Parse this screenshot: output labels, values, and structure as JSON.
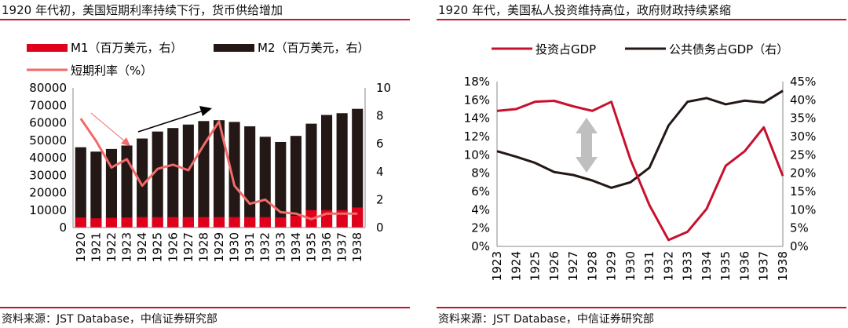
{
  "colors": {
    "accent": "#c8102e",
    "m1": "#e0001b",
    "m2": "#231815",
    "rate": "#f26a6a",
    "black": "#231815",
    "arrow_gray": "#bfbfbf"
  },
  "left": {
    "title": "1920 年代初，美国短期利率持续下行，货币供给增加",
    "source": "资料来源：JST Database，中信证券研究部"
  },
  "right": {
    "title": "1920 年代，美国私人投资维持高位，政府财政持续紧缩",
    "source": "资料来源：JST Database，中信证券研究部"
  },
  "chart_data": [
    {
      "type": "bar",
      "title": "1920 年代初，美国短期利率持续下行，货币供给增加",
      "categories": [
        "1920",
        "1921",
        "1922",
        "1923",
        "1924",
        "1925",
        "1926",
        "1927",
        "1928",
        "1929",
        "1930",
        "1931",
        "1932",
        "1933",
        "1934",
        "1935",
        "1936",
        "1937",
        "1938"
      ],
      "series": [
        {
          "name": "M1（百万美元，右）",
          "kind": "bar",
          "axis": "left",
          "values": [
            5800,
            5300,
            5600,
            5800,
            6000,
            6000,
            6000,
            6000,
            6000,
            6000,
            6000,
            6000,
            6000,
            5800,
            6800,
            10000,
            10000,
            10000,
            11500
          ]
        },
        {
          "name": "M2（百万美元，右）",
          "kind": "bar",
          "axis": "left",
          "values": [
            46000,
            43500,
            45000,
            47000,
            51000,
            55000,
            57000,
            59000,
            61000,
            61500,
            60500,
            58000,
            52000,
            49000,
            52500,
            59500,
            64500,
            65500,
            68000
          ]
        },
        {
          "name": "短期利率（%）",
          "kind": "line",
          "axis": "right",
          "values": [
            7.8,
            6.2,
            4.3,
            4.9,
            3.0,
            4.2,
            4.5,
            4.1,
            5.9,
            7.6,
            3.0,
            1.7,
            2.0,
            1.1,
            1.0,
            0.6,
            1.0,
            1.0,
            1.0
          ]
        }
      ],
      "legend": [
        "M1（百万美元，右）",
        "M2（百万美元，右）",
        "短期利率（%）"
      ],
      "ylim_left": [
        0,
        80000
      ],
      "yticks_left": [
        "0",
        "10000",
        "20000",
        "30000",
        "40000",
        "50000",
        "60000",
        "70000",
        "80000"
      ],
      "ylim_right": [
        0,
        10
      ],
      "yticks_right": [
        "0",
        "2",
        "4",
        "6",
        "8",
        "10"
      ]
    },
    {
      "type": "line",
      "title": "1920 年代，美国私人投资维持高位，政府财政持续紧缩",
      "categories": [
        "1923",
        "1924",
        "1925",
        "1926",
        "1927",
        "1928",
        "1929",
        "1930",
        "1931",
        "1932",
        "1933",
        "1934",
        "1935",
        "1936",
        "1937",
        "1938"
      ],
      "series": [
        {
          "name": "投资占GDP",
          "axis": "left",
          "values": [
            0.148,
            0.15,
            0.158,
            0.159,
            0.153,
            0.148,
            0.158,
            0.095,
            0.045,
            0.007,
            0.016,
            0.041,
            0.088,
            0.104,
            0.13,
            0.077
          ]
        },
        {
          "name": "公共债务占GDP（右）",
          "axis": "right",
          "values": [
            0.26,
            0.245,
            0.228,
            0.203,
            0.195,
            0.18,
            0.16,
            0.175,
            0.215,
            0.33,
            0.395,
            0.405,
            0.388,
            0.398,
            0.393,
            0.425
          ]
        }
      ],
      "legend": [
        "投资占GDP",
        "公共债务占GDP（右）"
      ],
      "ylim_left": [
        0,
        0.18
      ],
      "yticks_left": [
        "0%",
        "2%",
        "4%",
        "6%",
        "8%",
        "10%",
        "12%",
        "14%",
        "16%",
        "18%"
      ],
      "ylim_right": [
        0,
        0.45
      ],
      "yticks_right": [
        "0%",
        "5%",
        "10%",
        "15%",
        "20%",
        "25%",
        "30%",
        "35%",
        "40%",
        "45%"
      ]
    }
  ]
}
